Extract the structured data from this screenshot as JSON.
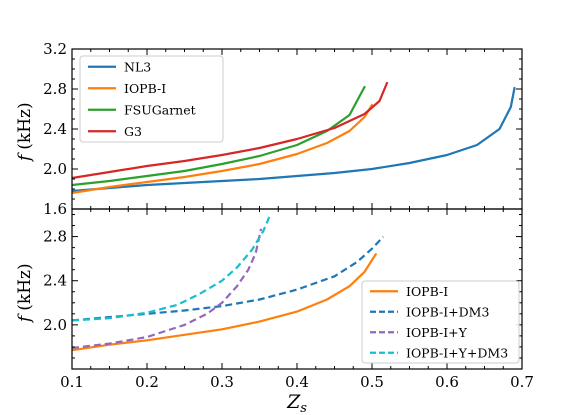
{
  "chart_data": [
    {
      "type": "line",
      "title": "",
      "xlabel": "",
      "ylabel_var": "f",
      "ylabel_unit": "(kHz)",
      "xlim": [
        0.1,
        0.7
      ],
      "ylim": [
        1.6,
        3.2
      ],
      "yticks": [
        "1.6",
        "2.0",
        "2.4",
        "2.8",
        "3.2"
      ],
      "legend_position": "top-left",
      "series": [
        {
          "name": "NL3",
          "color": "#1f77b4",
          "dash": "solid",
          "points": [
            [
              0.1,
              1.78
            ],
            [
              0.15,
              1.81
            ],
            [
              0.2,
              1.84
            ],
            [
              0.25,
              1.86
            ],
            [
              0.3,
              1.88
            ],
            [
              0.35,
              1.9
            ],
            [
              0.4,
              1.93
            ],
            [
              0.45,
              1.96
            ],
            [
              0.5,
              2.0
            ],
            [
              0.55,
              2.06
            ],
            [
              0.6,
              2.14
            ],
            [
              0.64,
              2.24
            ],
            [
              0.67,
              2.4
            ],
            [
              0.685,
              2.62
            ],
            [
              0.69,
              2.81
            ]
          ]
        },
        {
          "name": "IOPB-I",
          "color": "#ff7f0e",
          "dash": "solid",
          "points": [
            [
              0.1,
              1.76
            ],
            [
              0.15,
              1.82
            ],
            [
              0.2,
              1.87
            ],
            [
              0.25,
              1.92
            ],
            [
              0.3,
              1.98
            ],
            [
              0.35,
              2.05
            ],
            [
              0.4,
              2.15
            ],
            [
              0.44,
              2.26
            ],
            [
              0.47,
              2.38
            ],
            [
              0.49,
              2.52
            ],
            [
              0.5,
              2.64
            ]
          ]
        },
        {
          "name": "FSUGarnet",
          "color": "#2ca02c",
          "dash": "solid",
          "points": [
            [
              0.1,
              1.84
            ],
            [
              0.15,
              1.88
            ],
            [
              0.2,
              1.93
            ],
            [
              0.25,
              1.98
            ],
            [
              0.3,
              2.05
            ],
            [
              0.35,
              2.13
            ],
            [
              0.4,
              2.24
            ],
            [
              0.44,
              2.38
            ],
            [
              0.47,
              2.54
            ],
            [
              0.49,
              2.82
            ]
          ]
        },
        {
          "name": "G3",
          "color": "#d62728",
          "dash": "solid",
          "points": [
            [
              0.1,
              1.91
            ],
            [
              0.15,
              1.97
            ],
            [
              0.2,
              2.03
            ],
            [
              0.25,
              2.08
            ],
            [
              0.3,
              2.14
            ],
            [
              0.35,
              2.21
            ],
            [
              0.4,
              2.3
            ],
            [
              0.45,
              2.41
            ],
            [
              0.49,
              2.55
            ],
            [
              0.51,
              2.68
            ],
            [
              0.52,
              2.86
            ]
          ]
        }
      ],
      "legend": [
        "NL3",
        "IOPB-I",
        "FSUGarnet",
        "G3"
      ]
    },
    {
      "type": "line",
      "title": "",
      "xlabel_var": "Z",
      "xlabel_sub": "s",
      "ylabel_var": "f",
      "ylabel_unit": "(kHz)",
      "xlim": [
        0.1,
        0.7
      ],
      "ylim": [
        1.6,
        3.05
      ],
      "xticks": [
        "0.1",
        "0.2",
        "0.3",
        "0.4",
        "0.5",
        "0.6",
        "0.7"
      ],
      "yticks": [
        "2.0",
        "2.4",
        "2.8"
      ],
      "legend_position": "lower-right",
      "series": [
        {
          "name": "IOPB-I",
          "color": "#ff7f0e",
          "dash": "solid",
          "points": [
            [
              0.1,
              1.77
            ],
            [
              0.15,
              1.82
            ],
            [
              0.2,
              1.86
            ],
            [
              0.25,
              1.91
            ],
            [
              0.3,
              1.96
            ],
            [
              0.35,
              2.03
            ],
            [
              0.4,
              2.12
            ],
            [
              0.44,
              2.23
            ],
            [
              0.47,
              2.35
            ],
            [
              0.49,
              2.48
            ],
            [
              0.505,
              2.64
            ]
          ]
        },
        {
          "name": "IOPB-I+DM3",
          "color": "#1f77b4",
          "dash": "dashed",
          "points": [
            [
              0.1,
              2.04
            ],
            [
              0.15,
              2.07
            ],
            [
              0.2,
              2.1
            ],
            [
              0.25,
              2.13
            ],
            [
              0.3,
              2.17
            ],
            [
              0.35,
              2.23
            ],
            [
              0.4,
              2.32
            ],
            [
              0.45,
              2.44
            ],
            [
              0.48,
              2.57
            ],
            [
              0.5,
              2.69
            ],
            [
              0.515,
              2.8
            ]
          ]
        },
        {
          "name": "IOPB-I+Y",
          "color": "#9467bd",
          "dash": "dashed",
          "points": [
            [
              0.1,
              1.79
            ],
            [
              0.15,
              1.83
            ],
            [
              0.2,
              1.89
            ],
            [
              0.25,
              2.0
            ],
            [
              0.28,
              2.1
            ],
            [
              0.3,
              2.2
            ],
            [
              0.32,
              2.35
            ],
            [
              0.335,
              2.5
            ],
            [
              0.345,
              2.65
            ],
            [
              0.352,
              2.87
            ]
          ]
        },
        {
          "name": "IOPB-I+Y+DM3",
          "color": "#17becf",
          "dash": "dashed",
          "points": [
            [
              0.1,
              2.04
            ],
            [
              0.15,
              2.06
            ],
            [
              0.2,
              2.11
            ],
            [
              0.24,
              2.18
            ],
            [
              0.27,
              2.28
            ],
            [
              0.3,
              2.4
            ],
            [
              0.32,
              2.52
            ],
            [
              0.34,
              2.68
            ],
            [
              0.355,
              2.85
            ],
            [
              0.365,
              3.01
            ]
          ]
        }
      ],
      "legend": [
        "IOPB-I",
        "IOPB-I+DM3",
        "IOPB-I+Y",
        "IOPB-I+Y+DM3"
      ]
    }
  ]
}
